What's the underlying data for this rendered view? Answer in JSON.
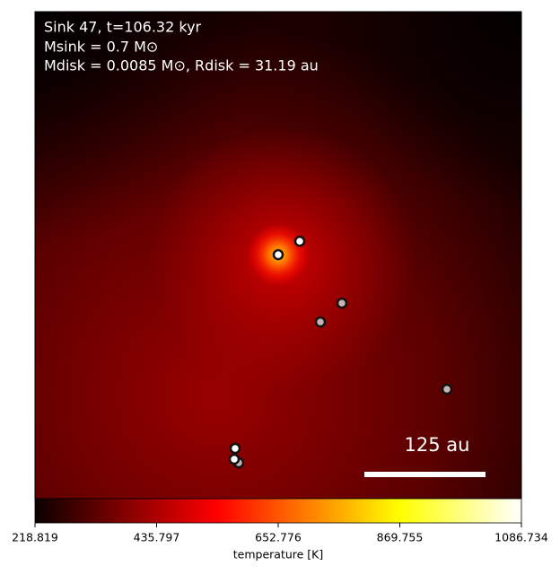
{
  "chart_data": {
    "type": "heatmap",
    "annotations": [
      "Sink 47, t=106.32 kyr",
      "Msink = 0.7 M⊙",
      "Mdisk = 0.0085 M⊙, Rdisk = 31.19 au"
    ],
    "scale_bar_label": "125 au",
    "colorbar": {
      "label": "temperature [K]",
      "colormap": "hot",
      "clim": [
        218.819,
        1086.734
      ],
      "cticks": [
        218.819,
        435.797,
        652.776,
        869.755,
        1086.734
      ]
    }
  }
}
